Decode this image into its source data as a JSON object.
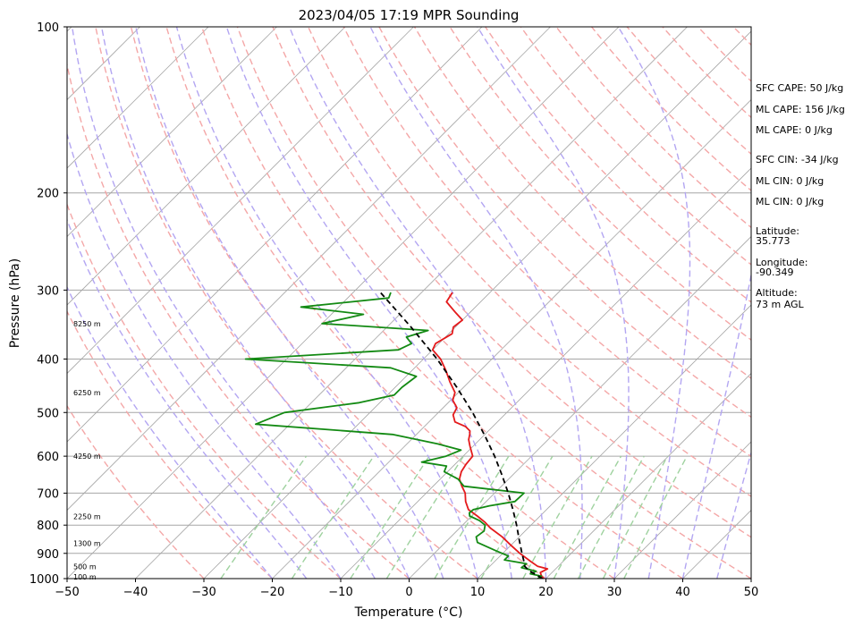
{
  "chart_data": {
    "type": "line",
    "subtype": "skew-T log-P sounding",
    "title": "2023/04/05 17:19 MPR Sounding",
    "xlabel": "Temperature (°C)",
    "ylabel": "Pressure (hPa)",
    "xlim": [
      -50,
      50
    ],
    "ylim": [
      1000,
      100
    ],
    "y_scale": "log",
    "grid": true,
    "x_ticks": [
      -50,
      -40,
      -30,
      -20,
      -10,
      0,
      10,
      20,
      30,
      40,
      50
    ],
    "x_tick_labels": [
      "−50",
      "−40",
      "−30",
      "−20",
      "−10",
      "0",
      "10",
      "20",
      "30",
      "40",
      "50"
    ],
    "y_ticks": [
      1000,
      900,
      800,
      700,
      600,
      500,
      400,
      300,
      200,
      100
    ],
    "y_tick_labels": [
      "1000",
      "900",
      "800",
      "700",
      "600",
      "500",
      "400",
      "300",
      "200",
      "100"
    ],
    "colors": {
      "temperature": "#e41a1c",
      "dewpoint": "#138a13",
      "parcel": "#000000",
      "isotherm": "#a6a6a6",
      "dry_adiabat": "#f4a7a7",
      "moist_adiabat": "#b3a6f2",
      "mixing_ratio": "#9fd29f",
      "isobar": "#a6a6a6"
    },
    "height_labels": [
      {
        "text": "100 m",
        "p": 993
      },
      {
        "text": "500 m",
        "p": 950
      },
      {
        "text": "1300 m",
        "p": 863
      },
      {
        "text": "2250 m",
        "p": 772
      },
      {
        "text": "4250 m",
        "p": 600
      },
      {
        "text": "6250 m",
        "p": 460
      },
      {
        "text": "8250 m",
        "p": 345
      }
    ],
    "annotations": [
      "SFC CAPE: 50 J/kg",
      "ML CAPE: 156 J/kg",
      "ML CAPE: 0 J/kg",
      "SFC CIN: -34 J/kg",
      "ML CIN: 0 J/kg",
      "ML CIN: 0 J/kg",
      "Latitude:",
      "35.773",
      "Longitude:",
      "-90.349",
      "Altitude:",
      "73 m AGL"
    ],
    "series": [
      {
        "key": "temperature",
        "values": [
          [
            1000,
            19.7
          ],
          [
            990,
            19.0
          ],
          [
            975,
            18.3
          ],
          [
            960,
            18.8
          ],
          [
            950,
            17.0
          ],
          [
            930,
            15.2
          ],
          [
            900,
            12.5
          ],
          [
            870,
            10.0
          ],
          [
            840,
            7.5
          ],
          [
            810,
            4.5
          ],
          [
            790,
            2.8
          ],
          [
            770,
            0.8
          ],
          [
            750,
            -1.4
          ],
          [
            725,
            -3.0
          ],
          [
            700,
            -4.3
          ],
          [
            680,
            -5.8
          ],
          [
            660,
            -7.2
          ],
          [
            640,
            -8.0
          ],
          [
            620,
            -8.4
          ],
          [
            600,
            -8.6
          ],
          [
            575,
            -10.5
          ],
          [
            560,
            -11.6
          ],
          [
            548,
            -12.2
          ],
          [
            540,
            -12.7
          ],
          [
            530,
            -14.0
          ],
          [
            520,
            -16.2
          ],
          [
            505,
            -17.5
          ],
          [
            490,
            -18.0
          ],
          [
            475,
            -19.7
          ],
          [
            460,
            -20.5
          ],
          [
            440,
            -22.8
          ],
          [
            420,
            -25.0
          ],
          [
            400,
            -27.5
          ],
          [
            385,
            -30.0
          ],
          [
            375,
            -30.5
          ],
          [
            360,
            -29.5
          ],
          [
            350,
            -30.3
          ],
          [
            340,
            -30.0
          ],
          [
            330,
            -32.0
          ],
          [
            315,
            -35.0
          ],
          [
            303,
            -35.5
          ]
        ]
      },
      {
        "key": "dewpoint",
        "values": [
          [
            1000,
            18.8
          ],
          [
            990,
            19.0
          ],
          [
            980,
            17.0
          ],
          [
            970,
            17.5
          ],
          [
            955,
            14.8
          ],
          [
            940,
            15.0
          ],
          [
            925,
            11.2
          ],
          [
            910,
            11.2
          ],
          [
            890,
            8.6
          ],
          [
            860,
            4.7
          ],
          [
            840,
            3.7
          ],
          [
            820,
            4.0
          ],
          [
            800,
            3.3
          ],
          [
            785,
            1.8
          ],
          [
            770,
            -0.3
          ],
          [
            760,
            -0.8
          ],
          [
            750,
            -0.7
          ],
          [
            738,
            1.1
          ],
          [
            725,
            4.2
          ],
          [
            700,
            4.3
          ],
          [
            680,
            -5.5
          ],
          [
            660,
            -7.4
          ],
          [
            640,
            -10.5
          ],
          [
            625,
            -11.0
          ],
          [
            615,
            -15.2
          ],
          [
            600,
            -12.5
          ],
          [
            585,
            -11.2
          ],
          [
            570,
            -15.5
          ],
          [
            548,
            -23.5
          ],
          [
            525,
            -45.0
          ],
          [
            500,
            -42.5
          ],
          [
            480,
            -33.0
          ],
          [
            465,
            -29.0
          ],
          [
            450,
            -29.0
          ],
          [
            430,
            -28.5
          ],
          [
            415,
            -33.5
          ],
          [
            400,
            -56.0
          ],
          [
            385,
            -35.0
          ],
          [
            375,
            -34.0
          ],
          [
            365,
            -35.7
          ],
          [
            355,
            -33.5
          ],
          [
            345,
            -50.0
          ],
          [
            332,
            -45.3
          ],
          [
            322,
            -55.5
          ],
          [
            310,
            -44.0
          ],
          [
            303,
            -44.5
          ]
        ]
      },
      {
        "key": "parcel",
        "values": [
          [
            1000,
            19.5
          ],
          [
            970,
            16.6
          ],
          [
            950,
            15.1
          ],
          [
            925,
            14.0
          ],
          [
            900,
            12.8
          ],
          [
            850,
            10.4
          ],
          [
            800,
            7.9
          ],
          [
            750,
            5.1
          ],
          [
            700,
            2.0
          ],
          [
            650,
            -1.5
          ],
          [
            600,
            -5.4
          ],
          [
            550,
            -9.9
          ],
          [
            500,
            -15.0
          ],
          [
            450,
            -21.0
          ],
          [
            400,
            -28.0
          ],
          [
            350,
            -36.5
          ],
          [
            303,
            -46.0
          ]
        ]
      }
    ]
  }
}
